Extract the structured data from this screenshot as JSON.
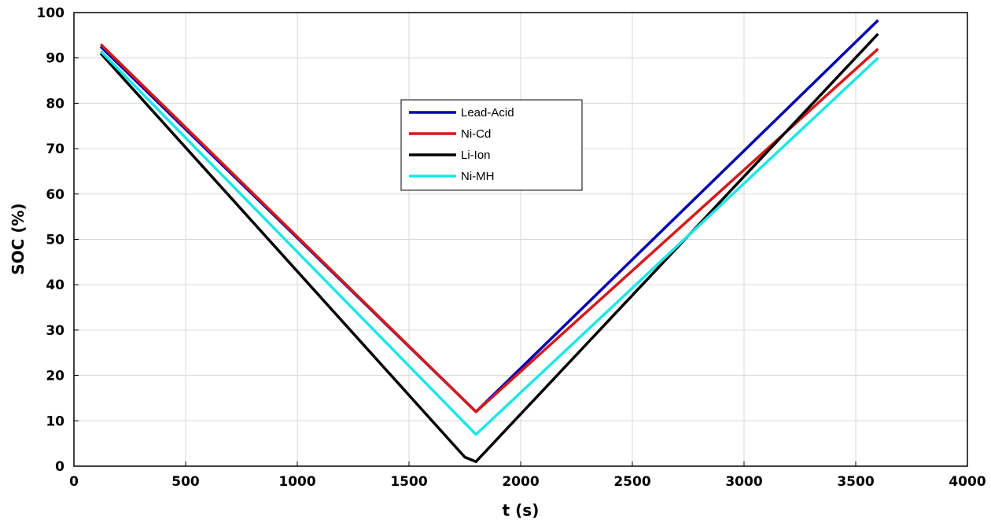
{
  "chart_data": {
    "type": "line",
    "xlabel": "t (s)",
    "ylabel": "SOC (%)",
    "xlim": [
      0,
      4000
    ],
    "ylim": [
      0,
      100
    ],
    "xticks": [
      0,
      500,
      1000,
      1500,
      2000,
      2500,
      3000,
      3500,
      4000
    ],
    "yticks": [
      0,
      10,
      20,
      30,
      40,
      50,
      60,
      70,
      80,
      90,
      100
    ],
    "grid": true,
    "legend_position": "upper-center",
    "series": [
      {
        "name": "Lead-Acid",
        "color": "#0000b4",
        "x": [
          120,
          1800,
          3600
        ],
        "y": [
          92.5,
          12,
          98.3
        ]
      },
      {
        "name": "Ni-Cd",
        "color": "#d41a1a",
        "x": [
          120,
          1800,
          3600
        ],
        "y": [
          93,
          12,
          92
        ]
      },
      {
        "name": "Li-Ion",
        "color": "#000000",
        "x": [
          120,
          1750,
          1800,
          3600
        ],
        "y": [
          91,
          2,
          1,
          95.3
        ]
      },
      {
        "name": "Ni-MH",
        "color": "#1ee6e6",
        "x": [
          120,
          1800,
          3600
        ],
        "y": [
          91.5,
          7,
          90
        ]
      }
    ]
  }
}
